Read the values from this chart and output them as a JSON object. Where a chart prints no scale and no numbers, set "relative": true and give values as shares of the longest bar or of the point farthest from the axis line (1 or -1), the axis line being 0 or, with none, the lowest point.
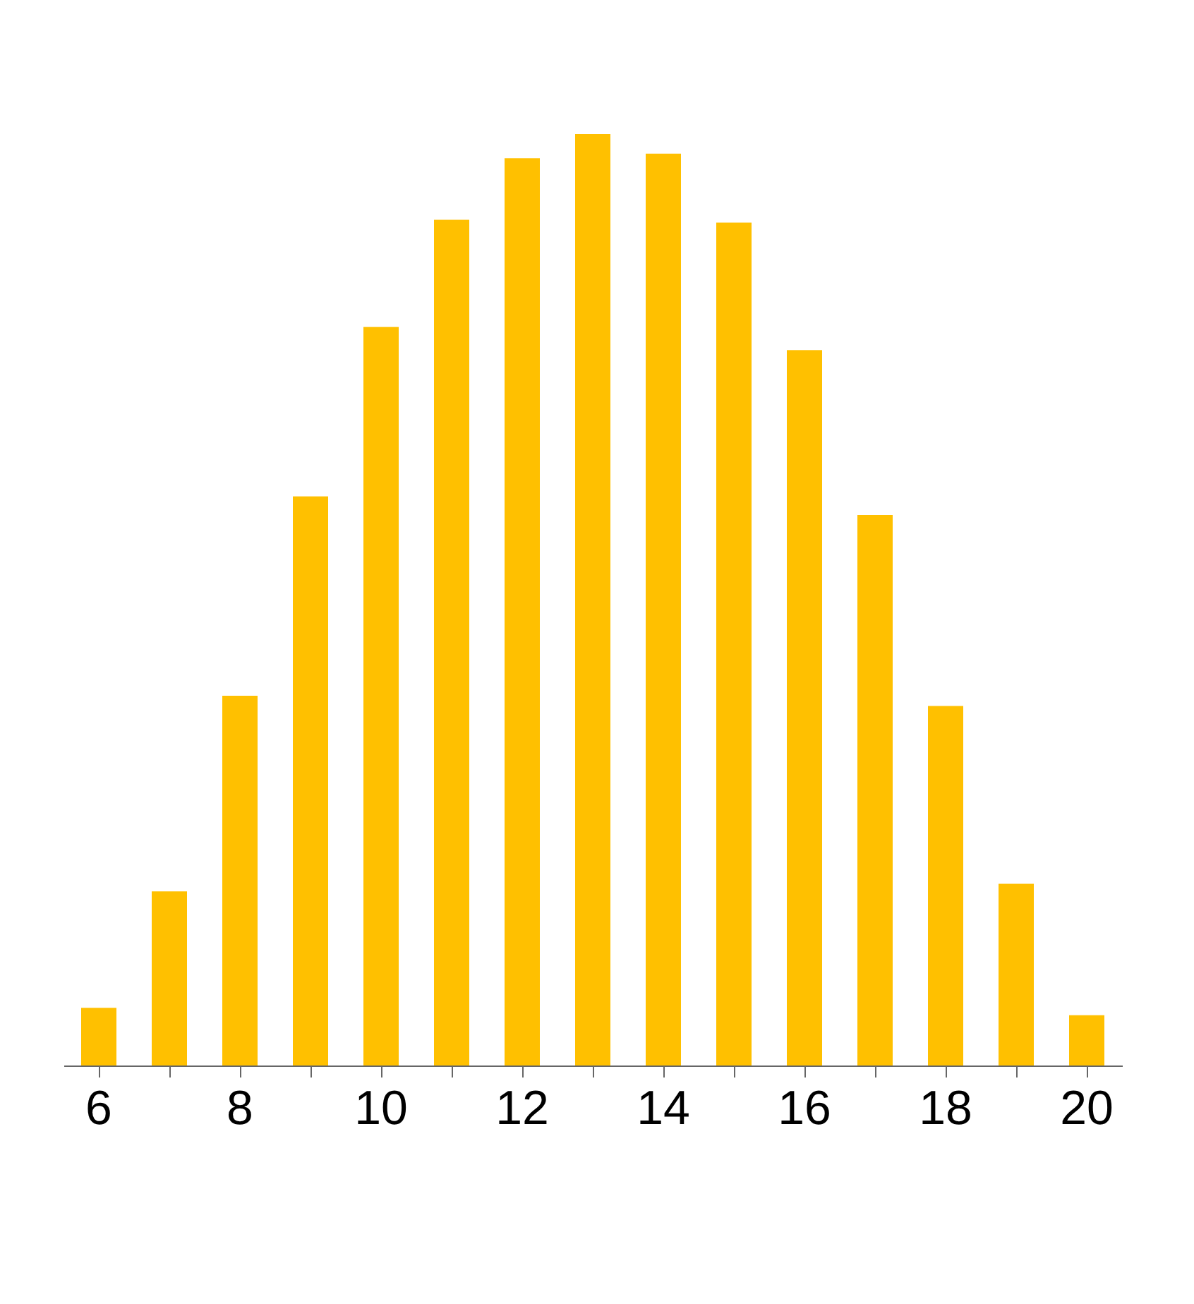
{
  "chart_data": {
    "type": "bar",
    "relative": true,
    "color": "#ffc000",
    "categories": [
      "6",
      null,
      "8",
      null,
      "10",
      null,
      "12",
      null,
      "14",
      null,
      "16",
      null,
      "18",
      null,
      "20"
    ],
    "values": [
      0.062,
      0.187,
      0.397,
      0.611,
      0.793,
      0.908,
      0.974,
      1,
      0.979,
      0.905,
      0.768,
      0.591,
      0.386,
      0.195,
      0.054
    ]
  }
}
